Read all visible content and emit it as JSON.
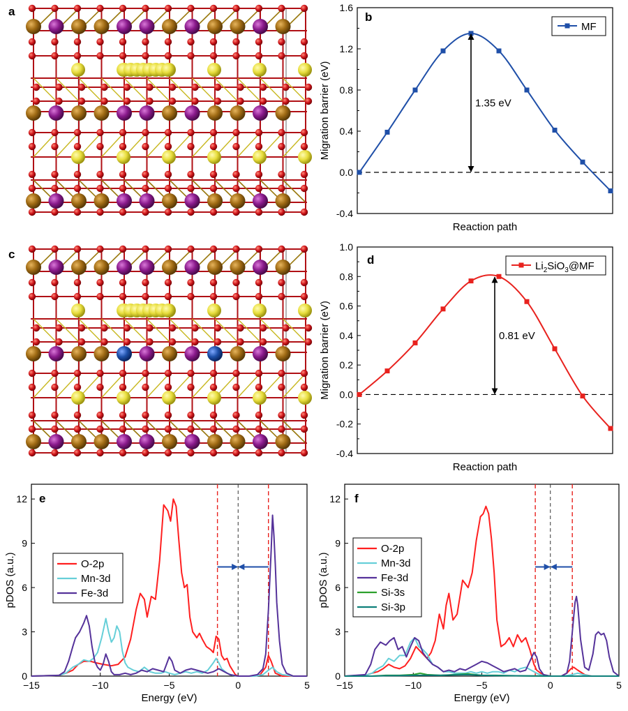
{
  "colors": {
    "mf_line": "#1f4fa8",
    "li_line": "#e8221e",
    "o2p": "#ff1f1f",
    "mn3d": "#66cfd8",
    "fe3d": "#55329a",
    "si3s": "#2ca02c",
    "si3p": "#0e7f7a",
    "atom_o": "#d0161b",
    "atom_mn": "#8a1a8c",
    "atom_fe": "#a06b14",
    "atom_si": "#e8de3e",
    "atom_dopant": "#1d4fa8"
  },
  "panels": {
    "a": "a",
    "b": "b",
    "c": "c",
    "d": "d",
    "e": "e",
    "f": "f"
  },
  "chart_data": [
    {
      "panel": "b",
      "type": "line",
      "title": "",
      "xlabel": "Reaction path",
      "ylabel": "Migration barrier (eV)",
      "ylim": [
        -0.4,
        1.6
      ],
      "yticks": [
        -0.4,
        0.0,
        0.4,
        0.8,
        1.2,
        1.6
      ],
      "ytick_labels": [
        "-0.4",
        "0.0",
        "0.4",
        "0.8",
        "1.2",
        "1.6"
      ],
      "series": [
        {
          "name": "MF",
          "x": [
            0,
            1,
            2,
            3,
            4,
            5,
            6,
            7,
            8,
            9
          ],
          "values": [
            0.0,
            0.39,
            0.8,
            1.18,
            1.35,
            1.18,
            0.8,
            0.41,
            0.1,
            -0.18
          ]
        }
      ],
      "reference_line": 0.0,
      "annotation": "1.35 eV",
      "legend": "top-right"
    },
    {
      "panel": "d",
      "type": "line",
      "title": "",
      "xlabel": "Reaction path",
      "ylabel": "Migration barrier (eV)",
      "ylim": [
        -0.4,
        1.0
      ],
      "yticks": [
        -0.4,
        -0.2,
        0.0,
        0.2,
        0.4,
        0.6,
        0.8,
        1.0
      ],
      "ytick_labels": [
        "-0.4",
        "-0.2",
        "0.0",
        "0.2",
        "0.4",
        "0.6",
        "0.8",
        "1.0"
      ],
      "series": [
        {
          "name": "Li2SiO3@MF",
          "x": [
            0,
            1,
            2,
            3,
            4,
            5,
            6,
            7,
            8,
            9
          ],
          "values": [
            0.0,
            0.16,
            0.35,
            0.58,
            0.77,
            0.8,
            0.63,
            0.31,
            -0.01,
            -0.23
          ]
        }
      ],
      "reference_line": 0.0,
      "annotation": "0.81 eV",
      "legend": "top-right"
    },
    {
      "panel": "e",
      "type": "line",
      "title": "",
      "xlabel": "Energy (eV)",
      "ylabel": "pDOS (a.u.)",
      "xlim": [
        -15,
        5
      ],
      "ylim": [
        0,
        13
      ],
      "xticks": [
        -15,
        -10,
        -5,
        0,
        5
      ],
      "xtick_labels": [
        "−15",
        "−10",
        "−5",
        "0",
        "5"
      ],
      "yticks": [
        0,
        3,
        6,
        9,
        12
      ],
      "ytick_labels": [
        "0",
        "3",
        "6",
        "9",
        "12"
      ],
      "fermi": 0,
      "band_edges": [
        -1.5,
        2.2
      ],
      "series": [
        {
          "name": "O-2p",
          "x": [
            -15,
            -13,
            -12.5,
            -12,
            -11.6,
            -11.2,
            -10.7,
            -10.3,
            -9.8,
            -9.2,
            -8.7,
            -8.2,
            -7.8,
            -7.4,
            -7.1,
            -6.8,
            -6.6,
            -6.3,
            -6.0,
            -5.7,
            -5.4,
            -5.1,
            -4.9,
            -4.7,
            -4.5,
            -4.3,
            -4.1,
            -3.9,
            -3.7,
            -3.5,
            -3.3,
            -3.0,
            -2.8,
            -2.6,
            -2.3,
            -2.0,
            -1.8,
            -1.6,
            -1.4,
            -1.2,
            -1.0,
            -0.8,
            -0.6,
            -0.4,
            -0.2,
            0.0,
            0.5,
            1.0,
            1.6,
            2.0,
            2.2,
            2.4,
            2.7,
            3.2,
            4,
            5
          ],
          "values": [
            0,
            0.05,
            0.2,
            0.4,
            0.8,
            1.0,
            1.0,
            0.9,
            0.8,
            0.7,
            0.8,
            1.3,
            2.5,
            4.5,
            5.6,
            5.2,
            4.0,
            5.4,
            5.2,
            7.8,
            11.6,
            11.2,
            10.5,
            12.0,
            11.5,
            9.2,
            7.0,
            6.0,
            6.2,
            4.0,
            3.0,
            2.6,
            2.9,
            2.5,
            2.0,
            1.8,
            1.6,
            2.7,
            2.5,
            1.4,
            1.1,
            1.2,
            0.7,
            0.4,
            0.1,
            0,
            0,
            0,
            0.1,
            0.6,
            1.4,
            1.0,
            0.2,
            0,
            0,
            0
          ]
        },
        {
          "name": "Mn-3d",
          "x": [
            -15,
            -13,
            -12.5,
            -12,
            -11.6,
            -11.2,
            -10.8,
            -10.5,
            -10.2,
            -9.9,
            -9.6,
            -9.4,
            -9.2,
            -9.0,
            -8.8,
            -8.6,
            -8.4,
            -8.2,
            -8.0,
            -7.6,
            -7.2,
            -6.8,
            -6.4,
            -6.0,
            -5.6,
            -5.3,
            -5.0,
            -4.6,
            -4.2,
            -3.8,
            -3.4,
            -3.0,
            -2.6,
            -2.2,
            -1.8,
            -1.6,
            -1.4,
            -1.2,
            -0.8,
            -0.4,
            0,
            0.6,
            1.2,
            1.8,
            2.2,
            2.5,
            2.8,
            3.2,
            4,
            5
          ],
          "values": [
            0,
            0.05,
            0.2,
            0.6,
            0.8,
            1.1,
            1.0,
            1.2,
            1.6,
            2.6,
            3.9,
            3.0,
            2.3,
            2.6,
            3.4,
            3.0,
            1.7,
            0.9,
            0.6,
            0.4,
            0.3,
            0.6,
            0.3,
            0.2,
            0.2,
            0.3,
            0.2,
            0.1,
            0.2,
            0.3,
            0.2,
            0.3,
            0.2,
            0.4,
            0.9,
            1.2,
            0.9,
            0.5,
            0.2,
            0.05,
            0,
            0,
            0,
            0.1,
            0.4,
            0.6,
            0.3,
            0.1,
            0,
            0
          ]
        },
        {
          "name": "Fe-3d",
          "x": [
            -15,
            -13,
            -12.6,
            -12.3,
            -12.0,
            -11.8,
            -11.5,
            -11.2,
            -11.0,
            -10.8,
            -10.6,
            -10.4,
            -10.2,
            -10.0,
            -9.8,
            -9.6,
            -9.4,
            -9.2,
            -9.0,
            -8.6,
            -8.2,
            -7.8,
            -7.4,
            -7.0,
            -6.6,
            -6.2,
            -5.8,
            -5.4,
            -5.2,
            -5.0,
            -4.8,
            -4.6,
            -4.2,
            -3.8,
            -3.4,
            -3.0,
            -2.6,
            -2.2,
            -1.8,
            -1.4,
            -1.0,
            -0.6,
            0,
            0.8,
            1.4,
            1.8,
            2.0,
            2.2,
            2.4,
            2.5,
            2.6,
            2.7,
            2.8,
            3.0,
            3.2,
            3.5,
            4,
            5
          ],
          "values": [
            0,
            0.05,
            0.3,
            1.0,
            2.0,
            2.6,
            3.0,
            3.6,
            4.1,
            3.4,
            2.0,
            1.0,
            0.6,
            0.4,
            0.8,
            1.5,
            1.0,
            0.3,
            0.1,
            0.1,
            0.2,
            0.1,
            0.2,
            0.4,
            0.3,
            0.5,
            0.4,
            0.3,
            0.8,
            1.3,
            1.0,
            0.4,
            0.2,
            0.4,
            0.5,
            0.4,
            0.3,
            0.2,
            0.3,
            0.5,
            0.3,
            0.1,
            0,
            0,
            0.1,
            0.5,
            1.5,
            4.5,
            8.5,
            10.9,
            9.5,
            7.5,
            5.0,
            2.4,
            0.8,
            0.2,
            0,
            0
          ]
        }
      ],
      "legend": "left"
    },
    {
      "panel": "f",
      "type": "line",
      "title": "",
      "xlabel": "Energy (eV)",
      "ylabel": "pDOS (a.u.)",
      "xlim": [
        -15,
        5
      ],
      "ylim": [
        0,
        13
      ],
      "xticks": [
        -15,
        -10,
        -5,
        0,
        5
      ],
      "xtick_labels": [
        "−15",
        "−10",
        "−5",
        "0",
        "5"
      ],
      "yticks": [
        0,
        3,
        6,
        9,
        12
      ],
      "ytick_labels": [
        "0",
        "3",
        "6",
        "9",
        "12"
      ],
      "fermi": 0,
      "band_edges": [
        -1.1,
        1.6
      ],
      "series": [
        {
          "name": "O-2p",
          "x": [
            -15,
            -13.5,
            -13,
            -12.6,
            -12.2,
            -11.8,
            -11.4,
            -11.0,
            -10.6,
            -10.2,
            -9.8,
            -9.4,
            -9.0,
            -8.7,
            -8.4,
            -8.1,
            -7.8,
            -7.6,
            -7.4,
            -7.1,
            -6.8,
            -6.4,
            -6.0,
            -5.7,
            -5.4,
            -5.1,
            -4.9,
            -4.7,
            -4.5,
            -4.3,
            -4.1,
            -3.9,
            -3.6,
            -3.3,
            -3.0,
            -2.7,
            -2.4,
            -2.1,
            -1.8,
            -1.5,
            -1.2,
            -1.0,
            -0.7,
            -0.4,
            0,
            0.8,
            1.2,
            1.5,
            1.7,
            2.0,
            2.5,
            3,
            4,
            5
          ],
          "values": [
            0,
            0.05,
            0.2,
            0.3,
            0.5,
            0.8,
            0.6,
            0.5,
            0.7,
            1.2,
            2.0,
            1.6,
            1.2,
            1.6,
            2.4,
            4.2,
            3.2,
            4.8,
            5.6,
            3.8,
            4.2,
            6.5,
            6.0,
            7.0,
            9.2,
            10.8,
            11.0,
            11.5,
            11.0,
            9.3,
            7.0,
            3.8,
            2.0,
            2.2,
            2.6,
            2.0,
            2.8,
            2.3,
            2.6,
            1.8,
            0.8,
            0.4,
            0.2,
            0.05,
            0,
            0,
            0.2,
            0.5,
            0.6,
            0.4,
            0.1,
            0,
            0,
            0
          ]
        },
        {
          "name": "Mn-3d",
          "x": [
            -15,
            -13.5,
            -13,
            -12.6,
            -12.2,
            -11.8,
            -11.4,
            -11.0,
            -10.6,
            -10.2,
            -9.9,
            -9.6,
            -9.3,
            -9.0,
            -8.6,
            -8.2,
            -7.8,
            -7.4,
            -7.0,
            -6.6,
            -6.2,
            -5.8,
            -5.4,
            -5.0,
            -4.6,
            -4.2,
            -3.8,
            -3.4,
            -3.0,
            -2.6,
            -2.2,
            -1.8,
            -1.4,
            -1.0,
            -0.6,
            0,
            1.0,
            1.6,
            2.0,
            2.4,
            3,
            4,
            5
          ],
          "values": [
            0,
            0.05,
            0.2,
            0.5,
            0.7,
            1.2,
            1.0,
            1.4,
            1.4,
            2.3,
            2.6,
            2.0,
            1.8,
            1.5,
            0.8,
            0.6,
            0.3,
            0.3,
            0.2,
            0.2,
            0.2,
            0.3,
            0.2,
            0.3,
            0.2,
            0.3,
            0.3,
            0.2,
            0.4,
            0.3,
            0.5,
            0.6,
            0.4,
            0.2,
            0.05,
            0,
            0,
            0.1,
            0.2,
            0.1,
            0,
            0,
            0
          ]
        },
        {
          "name": "Fe-3d",
          "x": [
            -15,
            -13.5,
            -13.1,
            -12.8,
            -12.4,
            -12.0,
            -11.7,
            -11.4,
            -11.1,
            -10.8,
            -10.5,
            -10.2,
            -9.9,
            -9.6,
            -9.3,
            -9.0,
            -8.6,
            -8.2,
            -7.8,
            -7.4,
            -7.0,
            -6.6,
            -6.2,
            -5.8,
            -5.4,
            -5.0,
            -4.6,
            -4.2,
            -3.8,
            -3.4,
            -3.0,
            -2.6,
            -2.2,
            -1.8,
            -1.5,
            -1.2,
            -1.0,
            -0.8,
            -0.5,
            0,
            0.8,
            1.2,
            1.4,
            1.6,
            1.8,
            1.9,
            2.0,
            2.2,
            2.5,
            2.8,
            3.1,
            3.3,
            3.5,
            3.7,
            3.9,
            4.1,
            4.3,
            4.6,
            5
          ],
          "values": [
            0,
            0.1,
            0.8,
            1.8,
            2.3,
            2.1,
            2.4,
            2.6,
            1.8,
            2.0,
            1.3,
            2.0,
            2.6,
            2.4,
            1.6,
            1.2,
            0.8,
            0.6,
            0.3,
            0.4,
            0.3,
            0.5,
            0.4,
            0.6,
            0.8,
            1.0,
            0.9,
            0.7,
            0.5,
            0.3,
            0.4,
            0.5,
            0.3,
            0.4,
            1.0,
            1.6,
            1.3,
            0.5,
            0.1,
            0,
            0,
            0.2,
            1.0,
            3.0,
            5.0,
            5.4,
            4.8,
            2.5,
            0.6,
            0.4,
            1.5,
            2.8,
            3.0,
            2.8,
            2.9,
            2.4,
            1.3,
            0.3,
            0
          ]
        },
        {
          "name": "Si-3s",
          "x": [
            -15,
            -13,
            -12,
            -11,
            -10,
            -9.5,
            -9,
            -8,
            -7,
            -6,
            -5,
            -4,
            -3,
            -2,
            -1,
            0,
            5
          ],
          "values": [
            0,
            0,
            0.05,
            0.05,
            0.1,
            0.2,
            0.1,
            0.05,
            0.1,
            0.15,
            0.05,
            0.05,
            0.03,
            0.02,
            0.01,
            0,
            0
          ]
        },
        {
          "name": "Si-3p",
          "x": [
            -15,
            -13,
            -12,
            -11,
            -10,
            -9,
            -8,
            -7,
            -6,
            -5,
            -4,
            -3,
            -2,
            -1,
            0,
            5
          ],
          "values": [
            0,
            0,
            0.03,
            0.04,
            0.05,
            0.06,
            0.05,
            0.08,
            0.1,
            0.05,
            0.04,
            0.03,
            0.02,
            0.01,
            0,
            0
          ]
        }
      ],
      "legend": "left"
    }
  ]
}
